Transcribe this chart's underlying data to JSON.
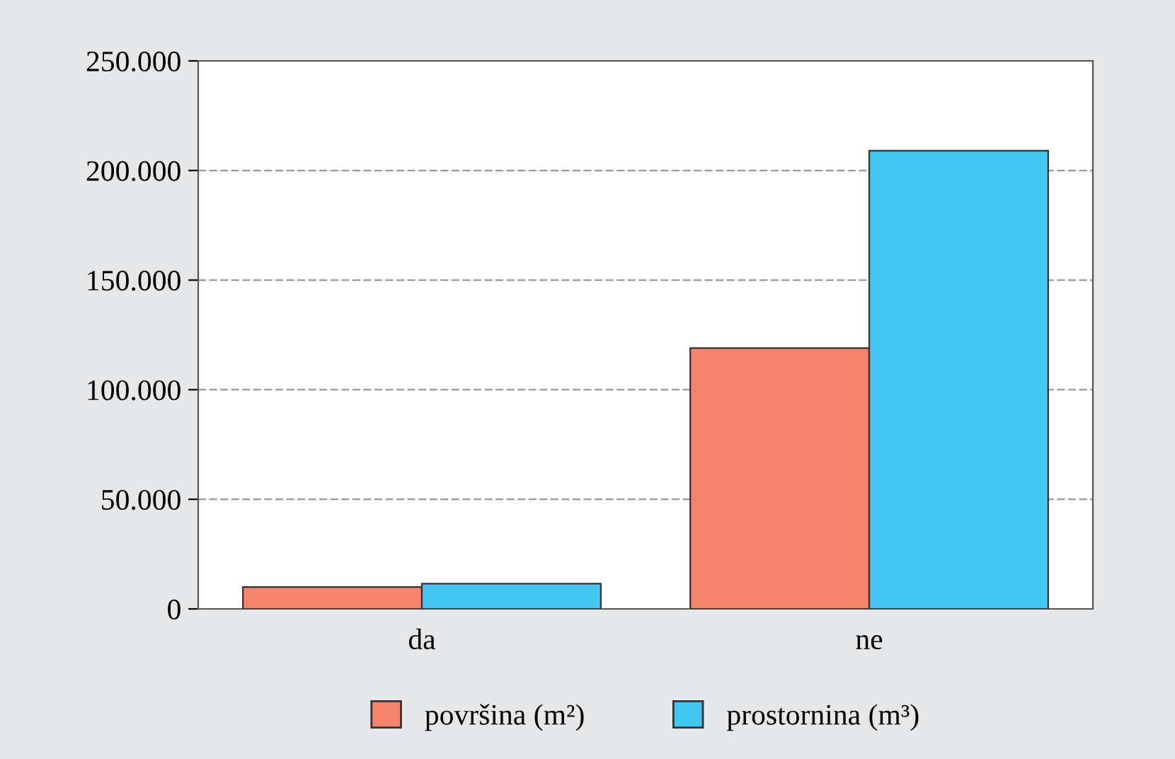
{
  "chart_data": {
    "type": "bar",
    "categories": [
      "da",
      "ne"
    ],
    "series": [
      {
        "name": "površina (m²)",
        "color": "#f4856a",
        "values": [
          10000,
          119000
        ]
      },
      {
        "name": "prostornina (m³)",
        "color": "#41c7f2",
        "values": [
          11500,
          209000
        ]
      }
    ],
    "ylim": [
      0,
      250000
    ],
    "yticks": [
      {
        "value": 0,
        "label": "0"
      },
      {
        "value": 50000,
        "label": "50.000"
      },
      {
        "value": 100000,
        "label": "100.000"
      },
      {
        "value": 150000,
        "label": "150.000"
      },
      {
        "value": 200000,
        "label": "200.000"
      },
      {
        "value": 250000,
        "label": "250.000"
      }
    ],
    "grid": "y",
    "legend": "bottom"
  }
}
